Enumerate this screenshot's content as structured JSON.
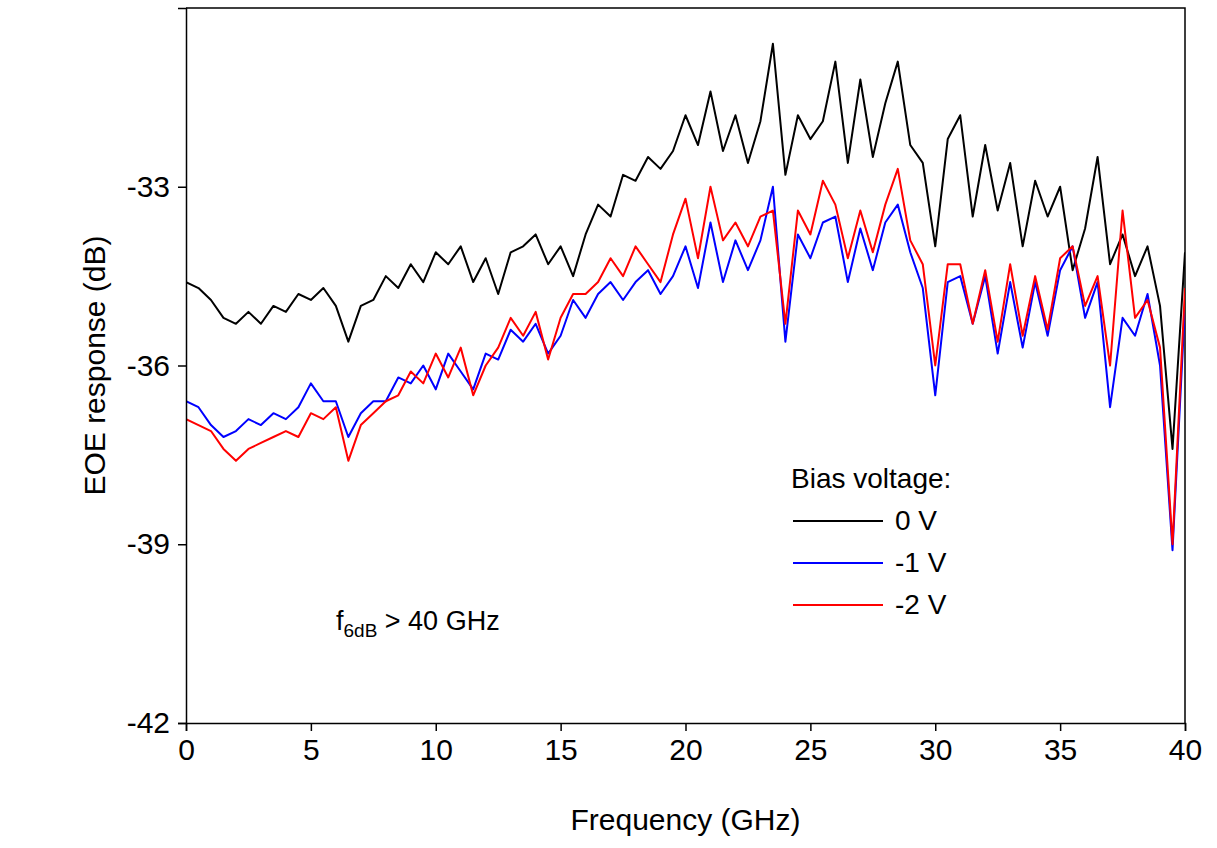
{
  "chart_data": {
    "type": "line",
    "x_label": "Frequency (GHz)",
    "y_label": "EOE response (dB)",
    "xlim": [
      0,
      40
    ],
    "ylim": [
      -42,
      -30
    ],
    "xticks": [
      0,
      5,
      10,
      15,
      20,
      25,
      30,
      35,
      40
    ],
    "yticks": [
      -42,
      -39,
      -36,
      -33
    ],
    "legend": "lower right",
    "legend_title": "Bias voltage:",
    "annotation": {
      "text": "f",
      "subscript": "6dB",
      "after": " > 40 GHz"
    },
    "x": [
      0,
      0.5,
      1,
      1.5,
      2,
      2.5,
      3,
      3.5,
      4,
      4.5,
      5,
      5.5,
      6,
      6.5,
      7,
      7.5,
      8,
      8.5,
      9,
      9.5,
      10,
      10.5,
      11,
      11.5,
      12,
      12.5,
      13,
      13.5,
      14,
      14.5,
      15,
      15.5,
      16,
      16.5,
      17,
      17.5,
      18,
      18.5,
      19,
      19.5,
      20,
      20.5,
      21,
      21.5,
      22,
      22.5,
      23,
      23.5,
      24,
      24.5,
      25,
      25.5,
      26,
      26.5,
      27,
      27.5,
      28,
      28.5,
      29,
      29.5,
      30,
      30.5,
      31,
      31.5,
      32,
      32.5,
      33,
      33.5,
      34,
      34.5,
      35,
      35.5,
      36,
      36.5,
      37,
      37.5,
      38,
      38.5,
      39,
      39.5,
      40
    ],
    "series": [
      {
        "name": "0 V",
        "color": "#000000",
        "values": [
          -34.6,
          -34.7,
          -34.9,
          -35.2,
          -35.3,
          -35.1,
          -35.3,
          -35.0,
          -35.1,
          -34.8,
          -34.9,
          -34.7,
          -35.0,
          -35.6,
          -35.0,
          -34.9,
          -34.5,
          -34.7,
          -34.3,
          -34.6,
          -34.1,
          -34.3,
          -34.0,
          -34.6,
          -34.2,
          -34.8,
          -34.1,
          -34.0,
          -33.8,
          -34.3,
          -34.0,
          -34.5,
          -33.8,
          -33.3,
          -33.5,
          -32.8,
          -32.9,
          -32.5,
          -32.7,
          -32.4,
          -31.8,
          -32.3,
          -31.4,
          -32.4,
          -31.8,
          -32.6,
          -31.9,
          -30.6,
          -32.8,
          -31.8,
          -32.2,
          -31.9,
          -30.9,
          -32.6,
          -31.2,
          -32.5,
          -31.6,
          -30.9,
          -32.3,
          -32.6,
          -34.0,
          -32.2,
          -31.8,
          -33.5,
          -32.3,
          -33.4,
          -32.6,
          -34.0,
          -32.9,
          -33.5,
          -33.0,
          -34.4,
          -33.7,
          -32.5,
          -34.3,
          -33.8,
          -34.5,
          -34.0,
          -35.0,
          -37.4,
          -34.1
        ]
      },
      {
        "name": "-1 V",
        "color": "#0000ff",
        "values": [
          -36.6,
          -36.7,
          -37.0,
          -37.2,
          -37.1,
          -36.9,
          -37.0,
          -36.8,
          -36.9,
          -36.7,
          -36.3,
          -36.6,
          -36.6,
          -37.2,
          -36.8,
          -36.6,
          -36.6,
          -36.2,
          -36.3,
          -36.0,
          -36.4,
          -35.8,
          -36.1,
          -36.4,
          -35.8,
          -35.9,
          -35.4,
          -35.6,
          -35.3,
          -35.8,
          -35.5,
          -34.9,
          -35.2,
          -34.8,
          -34.6,
          -34.9,
          -34.6,
          -34.4,
          -34.8,
          -34.5,
          -34.0,
          -34.7,
          -33.6,
          -34.6,
          -33.9,
          -34.4,
          -33.9,
          -33.0,
          -35.6,
          -33.8,
          -34.2,
          -33.6,
          -33.5,
          -34.6,
          -33.7,
          -34.4,
          -33.6,
          -33.3,
          -34.1,
          -34.7,
          -36.5,
          -34.6,
          -34.5,
          -35.3,
          -34.5,
          -35.8,
          -34.6,
          -35.7,
          -34.6,
          -35.5,
          -34.4,
          -34.0,
          -35.2,
          -34.6,
          -36.7,
          -35.2,
          -35.5,
          -34.8,
          -36.0,
          -39.1,
          -35.0
        ]
      },
      {
        "name": "-2 V",
        "color": "#ff0000",
        "values": [
          -36.9,
          -37.0,
          -37.1,
          -37.4,
          -37.6,
          -37.4,
          -37.3,
          -37.2,
          -37.1,
          -37.2,
          -36.8,
          -36.9,
          -36.7,
          -37.6,
          -37.0,
          -36.8,
          -36.6,
          -36.5,
          -36.1,
          -36.3,
          -35.8,
          -36.2,
          -35.7,
          -36.5,
          -36.0,
          -35.7,
          -35.2,
          -35.5,
          -35.1,
          -35.9,
          -35.2,
          -34.8,
          -34.8,
          -34.6,
          -34.2,
          -34.5,
          -34.0,
          -34.3,
          -34.6,
          -33.8,
          -33.2,
          -34.2,
          -33.0,
          -33.9,
          -33.6,
          -34.0,
          -33.5,
          -33.4,
          -35.3,
          -33.4,
          -33.8,
          -32.9,
          -33.3,
          -34.2,
          -33.4,
          -34.1,
          -33.3,
          -32.7,
          -33.9,
          -34.3,
          -36.0,
          -34.3,
          -34.3,
          -35.3,
          -34.4,
          -35.6,
          -34.3,
          -35.5,
          -34.5,
          -35.4,
          -34.2,
          -34.0,
          -35.0,
          -34.5,
          -36.0,
          -33.4,
          -35.2,
          -34.9,
          -35.7,
          -39.0,
          -34.7
        ]
      }
    ]
  }
}
